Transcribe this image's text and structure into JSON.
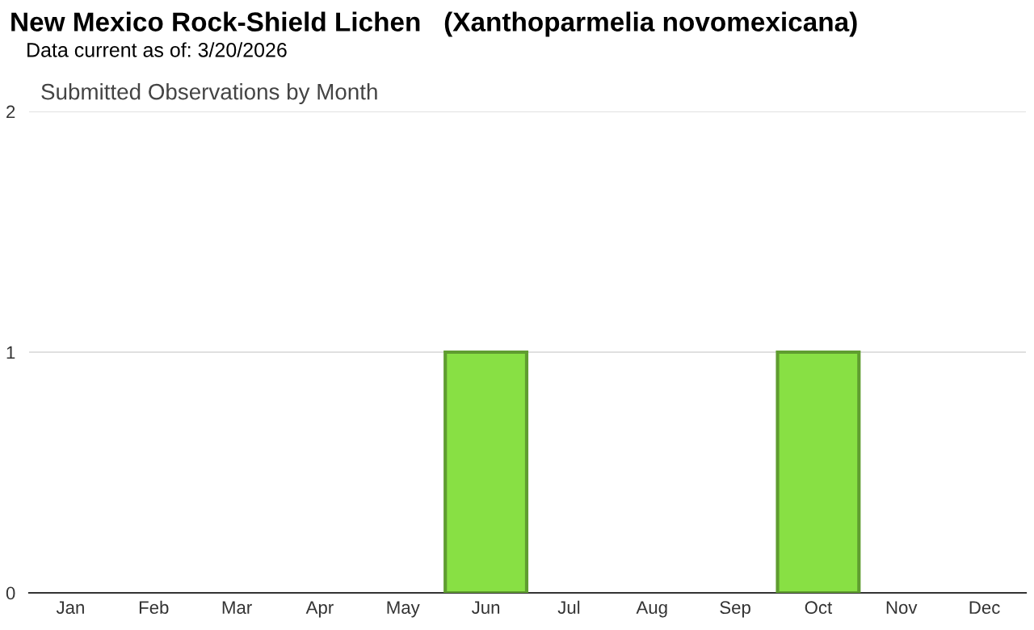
{
  "chart_data": {
    "type": "bar",
    "title": "New Mexico Rock-Shield Lichen   (Xanthoparmelia novomexicana)",
    "subtitle": "Data current as of: 3/20/2026",
    "annotations": [
      "Submitted Observations by Month"
    ],
    "categories": [
      "Jan",
      "Feb",
      "Mar",
      "Apr",
      "May",
      "Jun",
      "Jul",
      "Aug",
      "Sep",
      "Oct",
      "Nov",
      "Dec"
    ],
    "values": [
      0,
      0,
      0,
      0,
      0,
      1,
      0,
      0,
      0,
      1,
      0,
      0
    ],
    "color": "#88e044",
    "ylim": [
      0,
      2
    ],
    "yticks": [
      0,
      1,
      2
    ],
    "grid": "y",
    "legend": false
  }
}
